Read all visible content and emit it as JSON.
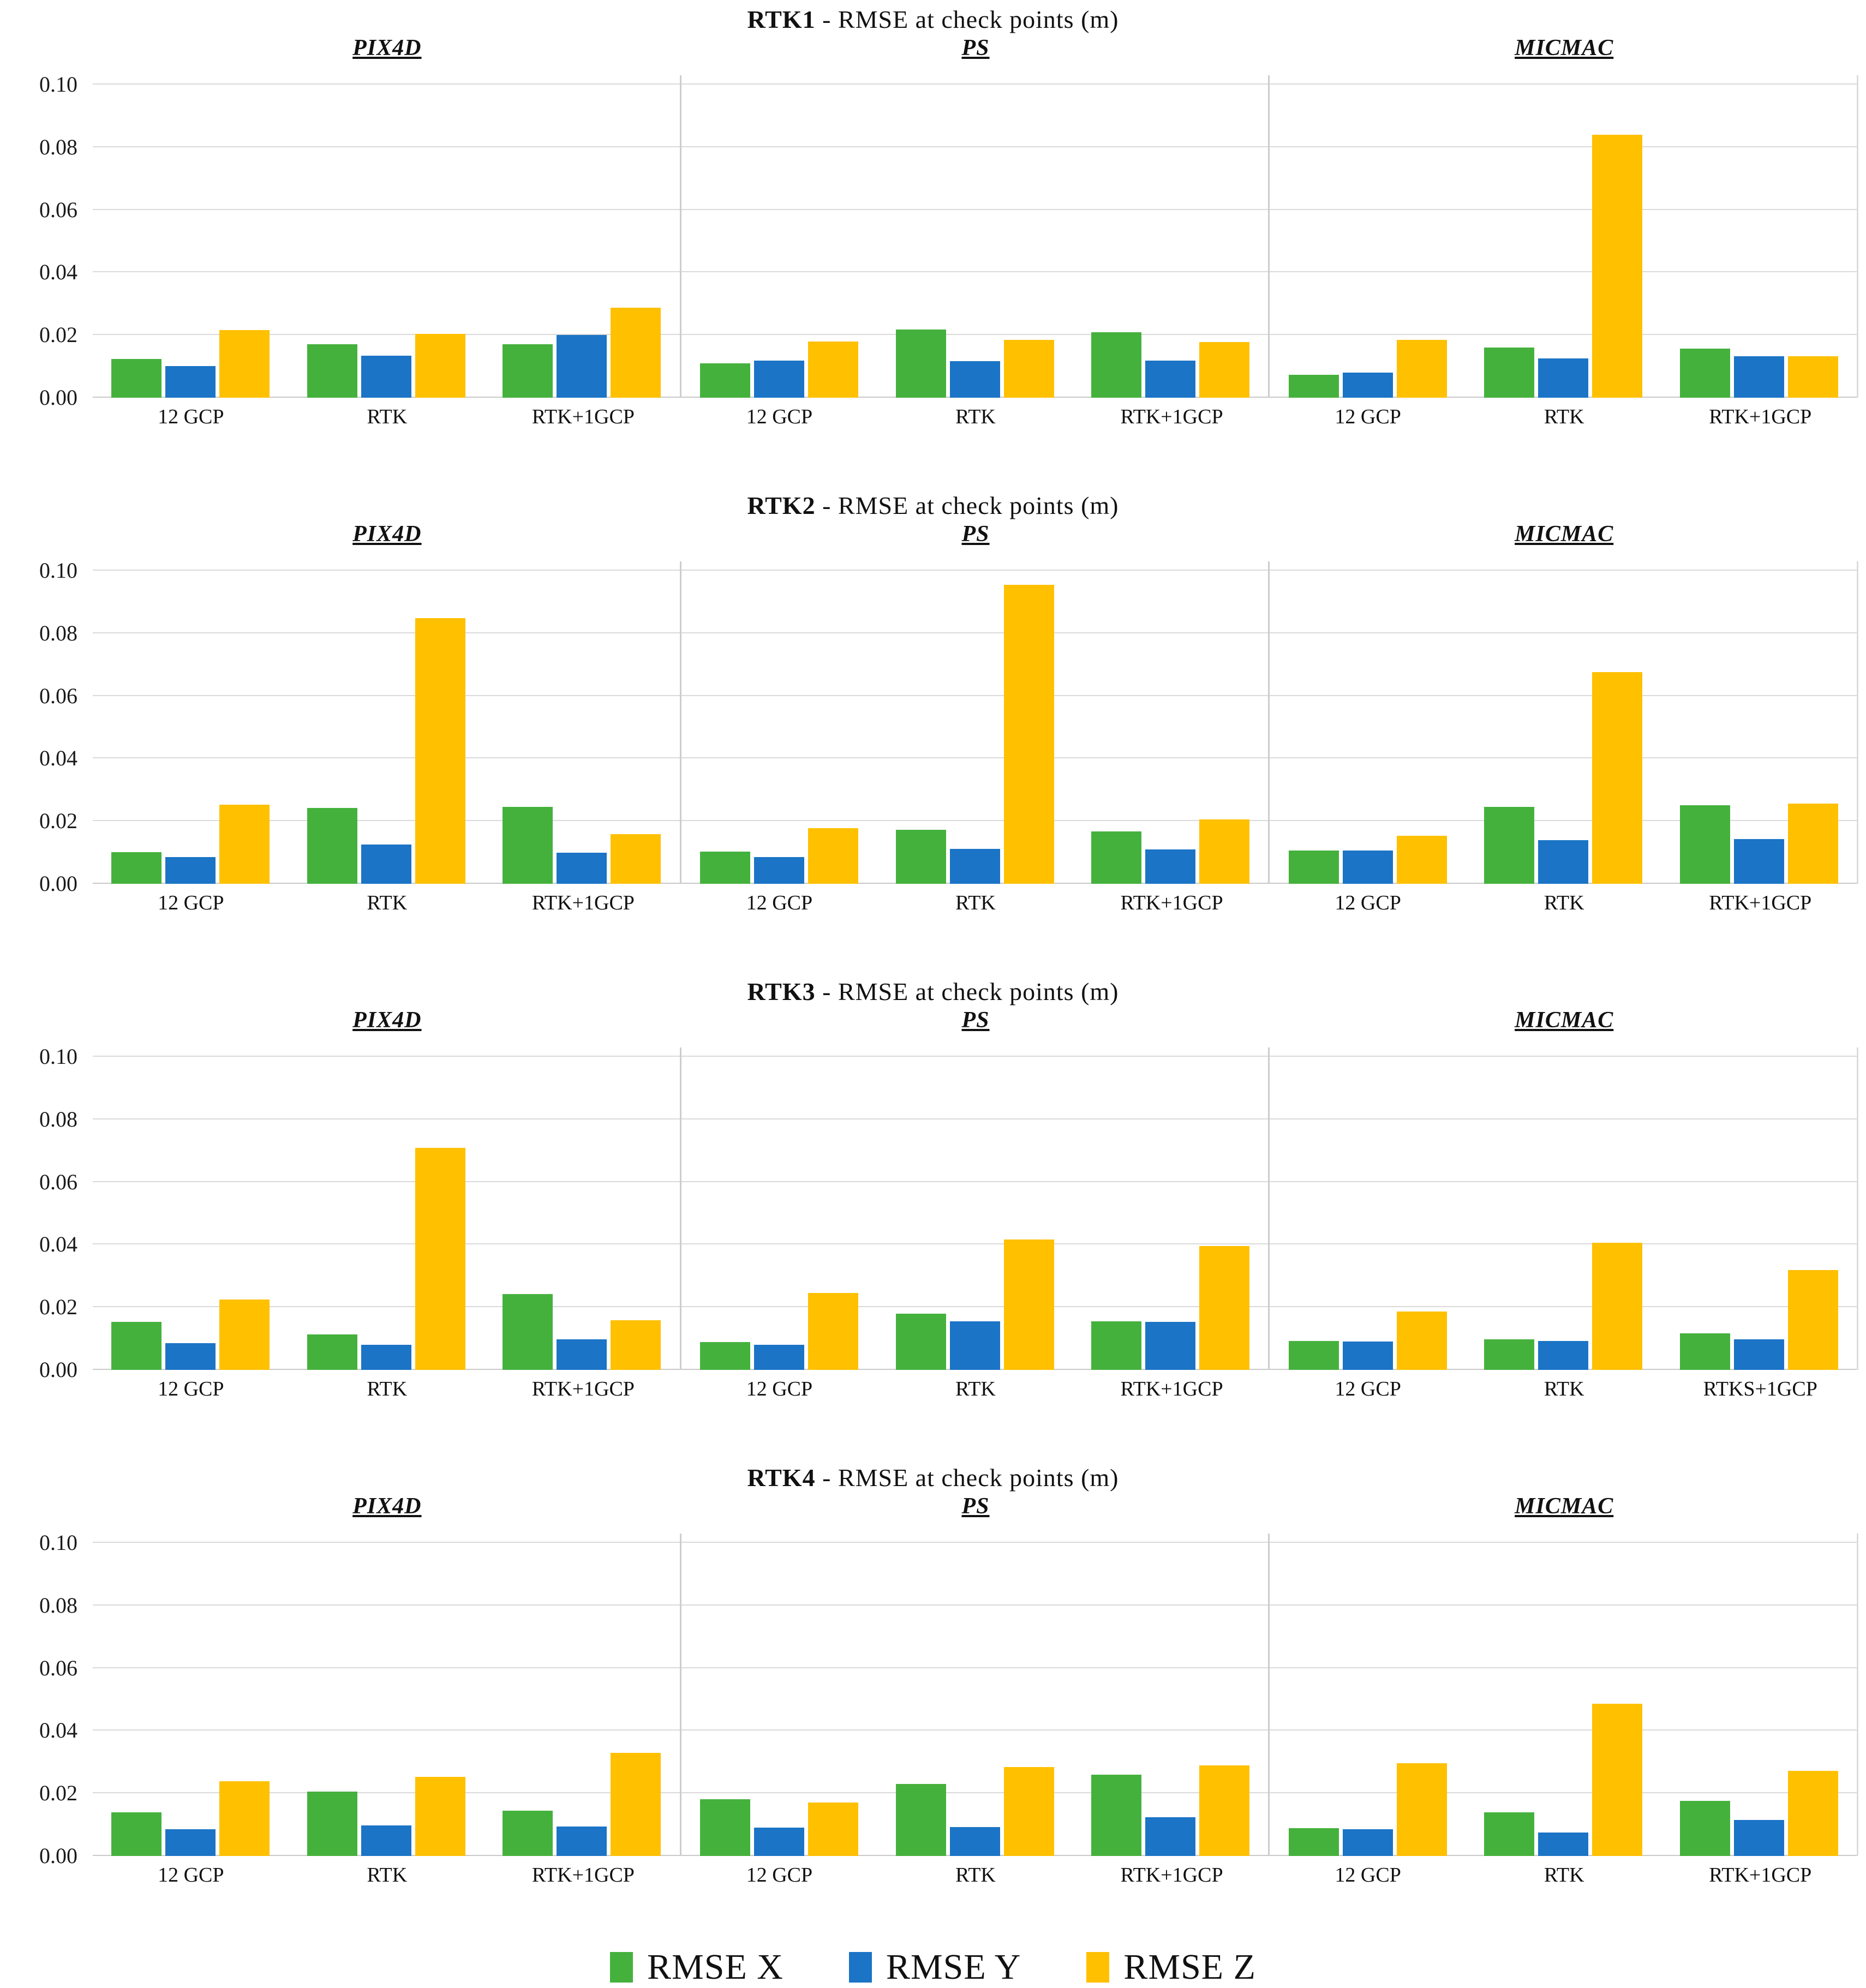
{
  "page": {
    "background": "#FFFFFF"
  },
  "series": [
    {
      "name": "RMSE X",
      "color": "#45B13D"
    },
    {
      "name": "RMSE Y",
      "color": "#1B74C6"
    },
    {
      "name": "RMSE Z",
      "color": "#FFC000"
    }
  ],
  "axis": {
    "ymax": 0.1,
    "yticks": [
      {
        "label": "0.10",
        "value": 0.1
      },
      {
        "label": "0.08",
        "value": 0.08
      },
      {
        "label": "0.06",
        "value": 0.06
      },
      {
        "label": "0.04",
        "value": 0.04
      },
      {
        "label": "0.02",
        "value": 0.02
      },
      {
        "label": "0.00",
        "value": 0.0
      }
    ]
  },
  "legend": {
    "items": [
      {
        "label": "RMSE X",
        "color": "#45B13D"
      },
      {
        "label": "RMSE Y",
        "color": "#1B74C6"
      },
      {
        "label": "RMSE Z",
        "color": "#FFC000"
      }
    ]
  },
  "chart_data": [
    {
      "type": "bar",
      "id": "rtk1",
      "title_bold": "RTK1",
      "title_rest": " - RMSE at check points (m)",
      "ylim": [
        0,
        0.1
      ],
      "grid": true,
      "legend_position": "bottom-shared",
      "series_names": [
        "RMSE X",
        "RMSE Y",
        "RMSE Z"
      ],
      "panels": [
        {
          "name": "PIX4D",
          "groups": [
            {
              "label": "12 GCP",
              "values": [
                0.0123,
                0.0102,
                0.0216
              ]
            },
            {
              "label": "RTK",
              "values": [
                0.0171,
                0.0135,
                0.0204
              ]
            },
            {
              "label": "RTK+1GCP",
              "values": [
                0.017,
                0.02,
                0.0288
              ]
            }
          ]
        },
        {
          "name": "PS",
          "groups": [
            {
              "label": "12 GCP",
              "values": [
                0.011,
                0.0118,
                0.0179
              ]
            },
            {
              "label": "RTK",
              "values": [
                0.0218,
                0.0117,
                0.0184
              ]
            },
            {
              "label": "RTK+1GCP",
              "values": [
                0.021,
                0.0118,
                0.0178
              ]
            }
          ]
        },
        {
          "name": "MICMAC",
          "groups": [
            {
              "label": "12 GCP",
              "values": [
                0.0073,
                0.0081,
                0.0184
              ]
            },
            {
              "label": "RTK",
              "values": [
                0.016,
                0.0126,
                0.084
              ]
            },
            {
              "label": "RTK+1GCP",
              "values": [
                0.0157,
                0.0133,
                0.0132
              ]
            }
          ]
        }
      ]
    },
    {
      "type": "bar",
      "id": "rtk2",
      "title_bold": "RTK2",
      "title_rest": " - RMSE at check points (m)",
      "ylim": [
        0,
        0.1
      ],
      "grid": true,
      "series_names": [
        "RMSE X",
        "RMSE Y",
        "RMSE Z"
      ],
      "panels": [
        {
          "name": "PIX4D",
          "groups": [
            {
              "label": "12 GCP",
              "values": [
                0.0101,
                0.0085,
                0.0252
              ]
            },
            {
              "label": "RTK",
              "values": [
                0.0242,
                0.0125,
                0.0848
              ]
            },
            {
              "label": "RTK+1GCP",
              "values": [
                0.0245,
                0.01,
                0.0158
              ]
            }
          ]
        },
        {
          "name": "PS",
          "groups": [
            {
              "label": "12 GCP",
              "values": [
                0.0103,
                0.0085,
                0.0177
              ]
            },
            {
              "label": "RTK",
              "values": [
                0.0173,
                0.0111,
                0.0955
              ]
            },
            {
              "label": "RTK+1GCP",
              "values": [
                0.0167,
                0.0109,
                0.0206
              ]
            }
          ]
        },
        {
          "name": "MICMAC",
          "groups": [
            {
              "label": "12 GCP",
              "values": [
                0.0107,
                0.0107,
                0.0153
              ]
            },
            {
              "label": "RTK",
              "values": [
                0.0245,
                0.014,
                0.0676
              ]
            },
            {
              "label": "RTK+1GCP",
              "values": [
                0.0251,
                0.0143,
                0.0257
              ]
            }
          ]
        }
      ]
    },
    {
      "type": "bar",
      "id": "rtk3",
      "title_bold": "RTK3",
      "title_rest": " - RMSE at check points (m)",
      "ylim": [
        0,
        0.1
      ],
      "grid": true,
      "series_names": [
        "RMSE X",
        "RMSE Y",
        "RMSE Z"
      ],
      "panels": [
        {
          "name": "PIX4D",
          "groups": [
            {
              "label": "12 GCP",
              "values": [
                0.0153,
                0.0085,
                0.0225
              ]
            },
            {
              "label": "RTK",
              "values": [
                0.0113,
                0.0081,
                0.071
              ]
            },
            {
              "label": "RTK+1GCP",
              "values": [
                0.0243,
                0.0097,
                0.0158
              ]
            }
          ]
        },
        {
          "name": "PS",
          "groups": [
            {
              "label": "12 GCP",
              "values": [
                0.0089,
                0.0081,
                0.0245
              ]
            },
            {
              "label": "RTK",
              "values": [
                0.0179,
                0.0156,
                0.0417
              ]
            },
            {
              "label": "RTK+1GCP",
              "values": [
                0.0156,
                0.0154,
                0.0395
              ]
            }
          ]
        },
        {
          "name": "MICMAC",
          "groups": [
            {
              "label": "12 GCP",
              "values": [
                0.0093,
                0.0091,
                0.0186
              ]
            },
            {
              "label": "RTK",
              "values": [
                0.0097,
                0.0093,
                0.0406
              ]
            },
            {
              "label": "RTKS+1GCP",
              "values": [
                0.0116,
                0.0097,
                0.0319
              ]
            }
          ]
        }
      ]
    },
    {
      "type": "bar",
      "id": "rtk4",
      "title_bold": "RTK4",
      "title_rest": " - RMSE at check points (m)",
      "ylim": [
        0,
        0.1
      ],
      "grid": true,
      "series_names": [
        "RMSE X",
        "RMSE Y",
        "RMSE Z"
      ],
      "panels": [
        {
          "name": "PIX4D",
          "groups": [
            {
              "label": "12 GCP",
              "values": [
                0.014,
                0.0086,
                0.0238
              ]
            },
            {
              "label": "RTK",
              "values": [
                0.0206,
                0.0097,
                0.0252
              ]
            },
            {
              "label": "RTK+1GCP",
              "values": [
                0.0144,
                0.0095,
                0.0329
              ]
            }
          ]
        },
        {
          "name": "PS",
          "groups": [
            {
              "label": "12 GCP",
              "values": [
                0.0182,
                0.009,
                0.017
              ]
            },
            {
              "label": "RTK",
              "values": [
                0.023,
                0.0092,
                0.0284
              ]
            },
            {
              "label": "RTK+1GCP",
              "values": [
                0.026,
                0.0124,
                0.029
              ]
            }
          ]
        },
        {
          "name": "MICMAC",
          "groups": [
            {
              "label": "12 GCP",
              "values": [
                0.0089,
                0.0086,
                0.0296
              ]
            },
            {
              "label": "RTK",
              "values": [
                0.0139,
                0.0075,
                0.0487
              ]
            },
            {
              "label": "RTK+1GCP",
              "values": [
                0.0176,
                0.0115,
                0.0271
              ]
            }
          ]
        }
      ]
    }
  ]
}
